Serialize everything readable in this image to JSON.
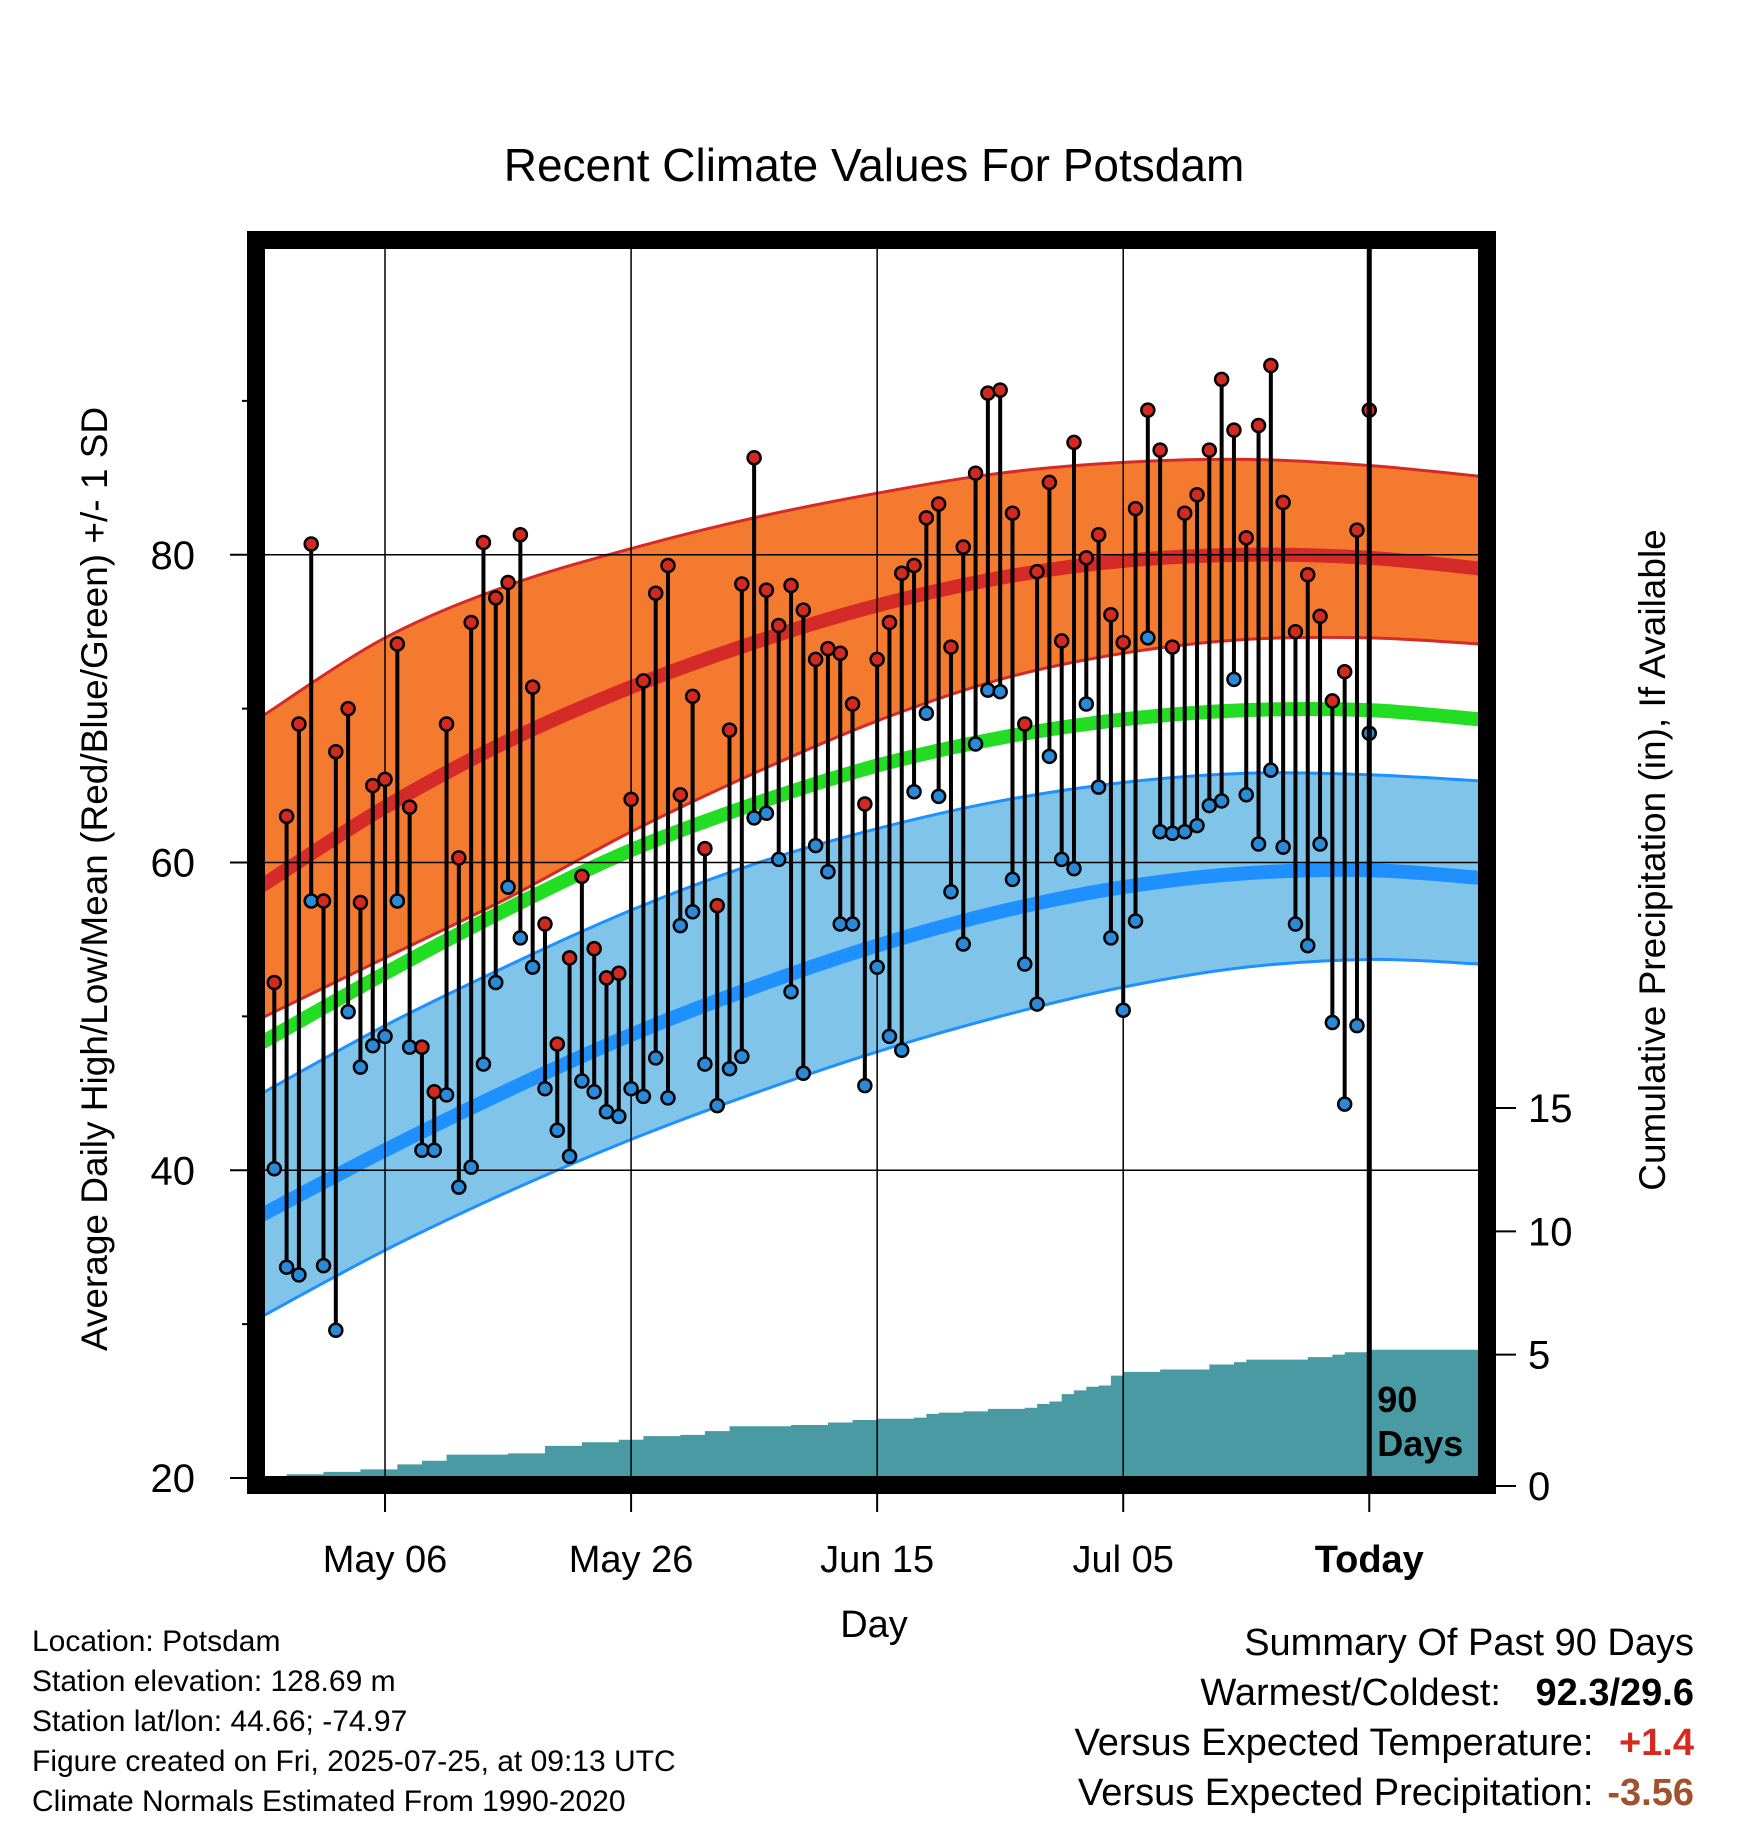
{
  "chart_data": {
    "type": "line",
    "title": "Recent Climate Values For Potsdam",
    "xlabel": "Day",
    "ylabel": "Average Daily High/Low/Mean (Red/Blue/Green) +/- 1 SD",
    "y2label": "Cumulative Precipitation (in), If Available",
    "ylim": [
      20,
      100
    ],
    "y2lim": [
      0,
      15
    ],
    "y_ticks": [
      20,
      40,
      60,
      80
    ],
    "y2_ticks": [
      0,
      5,
      10,
      15
    ],
    "x_start_offset": -90,
    "x_end_offset": 9,
    "x_tick_offsets": [
      -80,
      -60,
      -40,
      -20,
      0
    ],
    "x_tick_labels": [
      "May 06",
      "May 26",
      "Jun 15",
      "Jul 05",
      "Today"
    ],
    "today_label": [
      "90",
      "Days"
    ],
    "grid": true,
    "normals": {
      "offsets": [
        -90,
        -80,
        -70,
        -60,
        -50,
        -40,
        -30,
        -20,
        -10,
        0,
        9
      ],
      "high_mean": [
        58.5,
        63.6,
        67.9,
        71.4,
        74.3,
        76.7,
        78.5,
        79.6,
        80.0,
        79.8,
        79.1
      ],
      "high_upper": [
        69.5,
        74.6,
        78.0,
        80.4,
        82.4,
        84.0,
        85.3,
        86.0,
        86.2,
        85.8,
        85.1
      ],
      "high_lower": [
        49.9,
        53.8,
        57.7,
        62.0,
        65.8,
        69.2,
        71.9,
        73.6,
        74.5,
        74.6,
        74.2
      ],
      "mean_mean": [
        48.3,
        52.8,
        57.0,
        60.8,
        63.8,
        66.3,
        68.1,
        69.3,
        69.9,
        69.9,
        69.3
      ],
      "low_mean": [
        37.1,
        41.3,
        45.2,
        48.8,
        51.9,
        54.6,
        56.8,
        58.4,
        59.3,
        59.5,
        59.0
      ],
      "low_upper": [
        45.0,
        49.4,
        53.3,
        56.9,
        59.9,
        62.2,
        64.0,
        65.2,
        65.8,
        65.7,
        65.3
      ],
      "low_lower": [
        30.5,
        34.8,
        38.6,
        42.0,
        45.0,
        47.7,
        50.0,
        51.9,
        53.2,
        53.7,
        53.4
      ]
    },
    "daily_highs": [
      52.2,
      63.0,
      69.0,
      80.7,
      57.5,
      67.2,
      70.0,
      57.4,
      65.0,
      65.4,
      74.2,
      63.6,
      48.0,
      45.1,
      69.0,
      60.3,
      75.6,
      80.8,
      77.2,
      78.2,
      81.3,
      71.4,
      56.0,
      48.2,
      53.8,
      59.1,
      54.4,
      52.5,
      52.8,
      64.1,
      71.8,
      77.5,
      79.3,
      64.4,
      70.8,
      60.9,
      57.2,
      68.6,
      78.1,
      86.3,
      77.7,
      75.4,
      78.0,
      76.4,
      73.2,
      73.9,
      73.6,
      70.3,
      63.8,
      73.2,
      75.6,
      78.8,
      79.3,
      82.4,
      83.3,
      74.0,
      80.5,
      85.3,
      90.5,
      90.7,
      82.7,
      69.0,
      78.9,
      84.7,
      74.4,
      87.3,
      79.8,
      81.3,
      76.1,
      74.3,
      83.0,
      89.4,
      86.8,
      74.0,
      82.7,
      83.9,
      86.8,
      91.4,
      88.1,
      81.1,
      88.4,
      92.3,
      83.4,
      75.0,
      78.7,
      76.0,
      70.5,
      72.4,
      81.6,
      89.4
    ],
    "daily_lows": [
      40.1,
      33.7,
      33.2,
      57.5,
      33.8,
      29.6,
      50.3,
      46.7,
      48.1,
      48.7,
      57.5,
      48.0,
      41.3,
      41.3,
      44.9,
      38.9,
      40.2,
      46.9,
      52.2,
      58.4,
      55.1,
      53.2,
      45.3,
      42.6,
      40.9,
      45.8,
      45.1,
      43.8,
      43.5,
      45.3,
      44.8,
      47.3,
      44.7,
      55.9,
      56.8,
      46.9,
      44.2,
      46.6,
      47.4,
      62.9,
      63.2,
      60.2,
      51.6,
      46.3,
      61.1,
      59.4,
      56.0,
      56.0,
      45.5,
      53.2,
      48.7,
      47.8,
      64.6,
      69.7,
      64.3,
      58.1,
      54.7,
      67.7,
      71.2,
      71.1,
      58.9,
      53.4,
      50.8,
      66.9,
      60.2,
      59.6,
      70.3,
      64.9,
      55.1,
      50.4,
      56.2,
      74.6,
      62.0,
      61.9,
      62.0,
      62.4,
      63.7,
      64.0,
      71.9,
      64.4,
      61.2,
      66.0,
      61.0,
      56.0,
      54.6,
      61.2,
      49.6,
      44.3,
      49.4,
      68.4
    ],
    "cumulative_precip_steps": [
      [
        -90,
        0.0
      ],
      [
        -88,
        0.15
      ],
      [
        -85,
        0.25
      ],
      [
        -82,
        0.35
      ],
      [
        -79,
        0.55
      ],
      [
        -77,
        0.7
      ],
      [
        -75,
        0.95
      ],
      [
        -70,
        1.0
      ],
      [
        -67,
        1.3
      ],
      [
        -64,
        1.45
      ],
      [
        -61,
        1.55
      ],
      [
        -59,
        1.7
      ],
      [
        -56,
        1.75
      ],
      [
        -54,
        1.9
      ],
      [
        -52,
        2.1
      ],
      [
        -47,
        2.15
      ],
      [
        -44,
        2.25
      ],
      [
        -42,
        2.35
      ],
      [
        -40,
        2.4
      ],
      [
        -37,
        2.45
      ],
      [
        -36,
        2.6
      ],
      [
        -35,
        2.65
      ],
      [
        -33,
        2.7
      ],
      [
        -31,
        2.8
      ],
      [
        -28,
        2.85
      ],
      [
        -27,
        3.0
      ],
      [
        -26,
        3.1
      ],
      [
        -25,
        3.4
      ],
      [
        -24,
        3.55
      ],
      [
        -23,
        3.7
      ],
      [
        -22,
        3.75
      ],
      [
        -21,
        4.15
      ],
      [
        -20,
        4.3
      ],
      [
        -17,
        4.4
      ],
      [
        -13,
        4.6
      ],
      [
        -11,
        4.7
      ],
      [
        -10,
        4.8
      ],
      [
        -5,
        4.9
      ],
      [
        -3,
        5.0
      ],
      [
        -2,
        5.1
      ],
      [
        0,
        5.2
      ],
      [
        9,
        5.2
      ]
    ]
  },
  "info": {
    "location": "Location: Potsdam",
    "elevation": "Station elevation: 128.69 m",
    "latlon": "Station lat/lon: 44.66; -74.97",
    "created": "Figure created on Fri, 2025-07-25, at 09:13 UTC",
    "normals": "Climate Normals Estimated From 1990-2020"
  },
  "summary": {
    "title": "Summary Of Past 90 Days",
    "warmest_coldest_label": "Warmest/Coldest:",
    "warmest_coldest_value": "92.3/29.6",
    "temp_label": "Versus Expected Temperature:",
    "temp_value": "+1.4",
    "precip_label": "Versus Expected Precipitation:",
    "precip_value": "-3.56"
  },
  "colors": {
    "high_band": "#f47a30",
    "high_line": "#d42a28",
    "high_edge": "#d42a28",
    "mean_line": "#22dd22",
    "low_band": "#80c4ea",
    "low_line": "#1e90ff",
    "low_edge": "#1e90ff",
    "precip_fill": "#4a9aa4",
    "high_dot": "#d22a20",
    "low_dot": "#2a8ad8",
    "temp_anomaly": "#d42a20",
    "precip_anomaly": "#a0522d"
  }
}
